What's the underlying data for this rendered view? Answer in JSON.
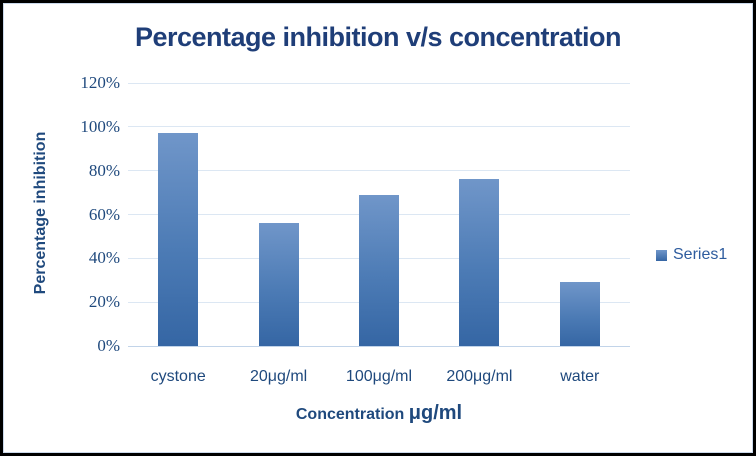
{
  "chart_data": {
    "type": "bar",
    "title": "Percentage inhibition v/s concentration",
    "categories": [
      "cystone",
      "20μg/ml",
      "100μg/ml",
      "200μg/ml",
      "water"
    ],
    "series": [
      {
        "name": "Series1",
        "values": [
          97,
          56,
          69,
          76,
          29
        ]
      }
    ],
    "ylabel": "Percentage inhibition",
    "xlabel": "Concentration μg/ml",
    "xlabel_main": "Concentration",
    "xlabel_unit": "μg/ml",
    "ylim": [
      0,
      120
    ],
    "yticks": [
      "0%",
      "20%",
      "40%",
      "60%",
      "80%",
      "100%",
      "120%"
    ],
    "grid": true,
    "legend_position": "right"
  },
  "colors": {
    "title_text": "#1F3E78",
    "axis_text": "#1F497D",
    "legend_text": "#2E5C9E",
    "bar_gradient_top": "#7096C9",
    "bar_gradient_mid": "#4C7BB5",
    "bar_gradient_bottom": "#3566A4",
    "gridline": "#DCE7F3",
    "axis_line": "#C2D4E9",
    "outer_border": "#000000",
    "inner_border": "#CBD9EB"
  }
}
